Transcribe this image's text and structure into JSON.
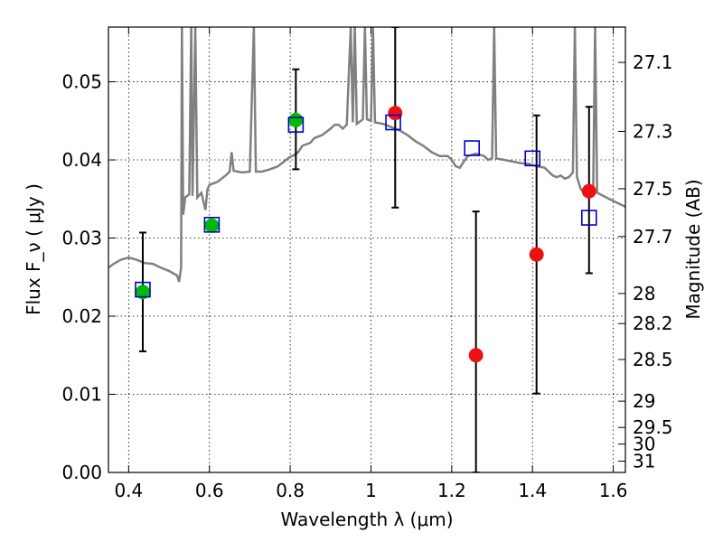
{
  "chart_data": {
    "type": "scatter",
    "title": "",
    "xlabel": "Wavelength  λ (μm)",
    "ylabel": "Flux  F_ν  ( μJy )",
    "ylabel_right": "Magnitude (AB)",
    "xlim": [
      0.35,
      1.63
    ],
    "ylim": [
      0.0,
      0.057
    ],
    "grid": true,
    "x_ticks": [
      0.4,
      0.6,
      0.8,
      1.0,
      1.2,
      1.4,
      1.6
    ],
    "x_tick_labels": [
      "0.4",
      "0.6",
      "0.8",
      "1",
      "1.2",
      "1.4",
      "1.6"
    ],
    "y_ticks": [
      0.0,
      0.01,
      0.02,
      0.03,
      0.04,
      0.05
    ],
    "y_tick_labels": [
      "0.00",
      "0.01",
      "0.02",
      "0.03",
      "0.04",
      "0.05"
    ],
    "right_ticks": [
      {
        "label": "27.1",
        "mag": 27.1
      },
      {
        "label": "27.3",
        "mag": 27.3
      },
      {
        "label": "27.5",
        "mag": 27.5
      },
      {
        "label": "27.7",
        "mag": 27.7
      },
      {
        "label": "28",
        "mag": 28.0
      },
      {
        "label": "28.2",
        "mag": 28.2
      },
      {
        "label": "28.5",
        "mag": 28.5
      },
      {
        "label": "29",
        "mag": 29.0
      },
      {
        "label": "29.5",
        "mag": 29.5
      },
      {
        "label": "30",
        "mag": 30.0
      },
      {
        "label": "31",
        "mag": 31.0
      }
    ],
    "model_spectrum": {
      "color": "#808080",
      "points": [
        [
          0.35,
          0.0262
        ],
        [
          0.36,
          0.0266
        ],
        [
          0.38,
          0.0272
        ],
        [
          0.4,
          0.0275
        ],
        [
          0.42,
          0.0272
        ],
        [
          0.44,
          0.0268
        ],
        [
          0.46,
          0.0267
        ],
        [
          0.48,
          0.0262
        ],
        [
          0.5,
          0.0258
        ],
        [
          0.52,
          0.0252
        ],
        [
          0.525,
          0.0244
        ],
        [
          0.53,
          0.0262
        ],
        [
          0.532,
          0.057
        ],
        [
          0.535,
          0.033
        ],
        [
          0.54,
          0.0352
        ],
        [
          0.55,
          0.0356
        ],
        [
          0.555,
          0.057
        ],
        [
          0.558,
          0.0354
        ],
        [
          0.565,
          0.057
        ],
        [
          0.57,
          0.0352
        ],
        [
          0.58,
          0.0358
        ],
        [
          0.59,
          0.0336
        ],
        [
          0.595,
          0.0362
        ],
        [
          0.6,
          0.0368
        ],
        [
          0.62,
          0.0372
        ],
        [
          0.64,
          0.038
        ],
        [
          0.65,
          0.0385
        ],
        [
          0.655,
          0.041
        ],
        [
          0.66,
          0.0386
        ],
        [
          0.68,
          0.0384
        ],
        [
          0.7,
          0.0385
        ],
        [
          0.71,
          0.057
        ],
        [
          0.715,
          0.0385
        ],
        [
          0.73,
          0.0385
        ],
        [
          0.75,
          0.0388
        ],
        [
          0.77,
          0.0392
        ],
        [
          0.79,
          0.04
        ],
        [
          0.8,
          0.0404
        ],
        [
          0.81,
          0.0406
        ],
        [
          0.82,
          0.041
        ],
        [
          0.83,
          0.0418
        ],
        [
          0.85,
          0.0422
        ],
        [
          0.86,
          0.0428
        ],
        [
          0.87,
          0.043
        ],
        [
          0.88,
          0.0432
        ],
        [
          0.89,
          0.0436
        ],
        [
          0.9,
          0.044
        ],
        [
          0.91,
          0.0445
        ],
        [
          0.92,
          0.0445
        ],
        [
          0.93,
          0.044
        ],
        [
          0.94,
          0.0445
        ],
        [
          0.95,
          0.057
        ],
        [
          0.955,
          0.0448
        ],
        [
          0.96,
          0.057
        ],
        [
          0.965,
          0.0446
        ],
        [
          0.98,
          0.0452
        ],
        [
          0.985,
          0.057
        ],
        [
          0.99,
          0.0452
        ],
        [
          1.0,
          0.045
        ],
        [
          1.005,
          0.057
        ],
        [
          1.01,
          0.0448
        ],
        [
          1.03,
          0.0446
        ],
        [
          1.05,
          0.0442
        ],
        [
          1.07,
          0.0438
        ],
        [
          1.09,
          0.0432
        ],
        [
          1.11,
          0.0424
        ],
        [
          1.13,
          0.0418
        ],
        [
          1.15,
          0.041
        ],
        [
          1.17,
          0.0405
        ],
        [
          1.19,
          0.0405
        ],
        [
          1.2,
          0.04
        ],
        [
          1.21,
          0.0392
        ],
        [
          1.22,
          0.039
        ],
        [
          1.23,
          0.0398
        ],
        [
          1.24,
          0.0405
        ],
        [
          1.26,
          0.0408
        ],
        [
          1.28,
          0.0405
        ],
        [
          1.29,
          0.04
        ],
        [
          1.3,
          0.0402
        ],
        [
          1.305,
          0.057
        ],
        [
          1.31,
          0.0402
        ],
        [
          1.33,
          0.04
        ],
        [
          1.35,
          0.0398
        ],
        [
          1.37,
          0.0396
        ],
        [
          1.39,
          0.0395
        ],
        [
          1.41,
          0.0392
        ],
        [
          1.43,
          0.039
        ],
        [
          1.44,
          0.0385
        ],
        [
          1.45,
          0.038
        ],
        [
          1.46,
          0.0378
        ],
        [
          1.47,
          0.038
        ],
        [
          1.48,
          0.0376
        ],
        [
          1.49,
          0.0378
        ],
        [
          1.5,
          0.0384
        ],
        [
          1.505,
          0.057
        ],
        [
          1.51,
          0.0378
        ],
        [
          1.52,
          0.0362
        ],
        [
          1.53,
          0.0358
        ],
        [
          1.54,
          0.0356
        ],
        [
          1.55,
          0.0355
        ],
        [
          1.555,
          0.057
        ],
        [
          1.56,
          0.0358
        ],
        [
          1.575,
          0.0354
        ],
        [
          1.59,
          0.035
        ],
        [
          1.61,
          0.0345
        ],
        [
          1.63,
          0.034
        ]
      ]
    },
    "model_photometry": {
      "marker": "open-square",
      "color": "#0000cc",
      "points": [
        [
          0.435,
          0.0234
        ],
        [
          0.606,
          0.0317
        ],
        [
          0.814,
          0.0445
        ],
        [
          1.055,
          0.0448
        ],
        [
          1.25,
          0.0415
        ],
        [
          1.4,
          0.0402
        ],
        [
          1.54,
          0.0326
        ]
      ]
    },
    "observed_optical": {
      "marker": "filled-circle",
      "color": "#00bb00",
      "points": [
        {
          "x": 0.435,
          "y": 0.0231,
          "yerr": [
            0.0155,
            0.0307
          ]
        },
        {
          "x": 0.606,
          "y": 0.0316,
          "yerr": null
        },
        {
          "x": 0.814,
          "y": 0.0451,
          "yerr": [
            0.0388,
            0.0516
          ]
        }
      ]
    },
    "observed_ir": {
      "marker": "filled-circle",
      "color": "#ee1111",
      "points": [
        {
          "x": 1.06,
          "y": 0.046,
          "yerr": [
            0.0339,
            0.057
          ]
        },
        {
          "x": 1.26,
          "y": 0.015,
          "yerr": [
            0.0,
            0.0334
          ]
        },
        {
          "x": 1.41,
          "y": 0.0279,
          "yerr": [
            0.0101,
            0.0457
          ]
        },
        {
          "x": 1.54,
          "y": 0.036,
          "yerr": [
            0.0255,
            0.0468
          ]
        }
      ]
    }
  }
}
